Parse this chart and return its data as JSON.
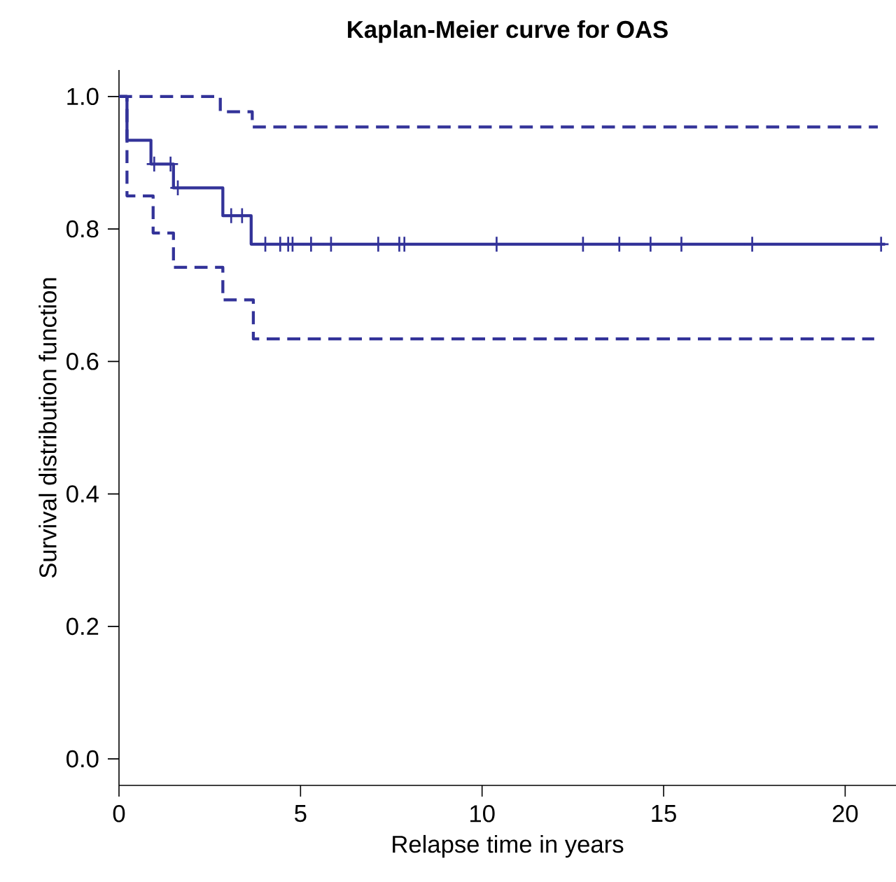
{
  "chart_data": {
    "type": "step",
    "title": "Kaplan-Meier curve for OAS",
    "xlabel": "Relapse time in years",
    "ylabel": "Survival distribution function",
    "xlim": [
      0,
      21.4
    ],
    "ylim": [
      -0.04,
      1.04
    ],
    "xticks": [
      0,
      5,
      10,
      15,
      20
    ],
    "yticks": [
      {
        "value": 0,
        "label": "0.0"
      },
      {
        "value": 0.2,
        "label": "0.2"
      },
      {
        "value": 0.4,
        "label": "0.4"
      },
      {
        "value": 0.6,
        "label": "0.6"
      },
      {
        "value": 0.8,
        "label": "0.8"
      },
      {
        "value": 1,
        "label": "1.0"
      }
    ],
    "series": [
      {
        "color": "#333399",
        "line_style": "solid",
        "x": [
          0,
          0.22,
          0.88,
          1.5,
          2.86,
          3.64,
          21.1
        ],
        "values": [
          1,
          0.934,
          0.898,
          0.862,
          0.82,
          0.777,
          0.777
        ]
      },
      {
        "color": "#333399",
        "line_style": "dashed",
        "x": [
          0,
          2.79,
          3.67,
          20.9
        ],
        "values": [
          1,
          0.977,
          0.954,
          0.954
        ]
      },
      {
        "color": "#333399",
        "line_style": "dashed",
        "x": [
          0,
          0.22,
          0.94,
          1.5,
          2.86,
          3.7,
          20.8
        ],
        "values": [
          1,
          0.85,
          0.794,
          0.742,
          0.693,
          0.634,
          0.634
        ]
      },
      {
        "type": "scatter",
        "color": "#333399",
        "marker": "cross",
        "x": [
          0.97,
          1.42,
          1.62,
          3.09,
          3.39,
          4.03,
          4.44,
          4.66,
          4.78,
          5.29,
          5.84,
          7.14,
          7.72,
          7.86,
          10.4,
          12.78,
          13.78,
          14.64,
          15.49,
          17.44,
          20.99
        ],
        "values": [
          0.898,
          0.898,
          0.862,
          0.82,
          0.82,
          0.777,
          0.777,
          0.777,
          0.777,
          0.777,
          0.777,
          0.777,
          0.777,
          0.777,
          0.777,
          0.777,
          0.777,
          0.777,
          0.777,
          0.777,
          0.777
        ]
      }
    ]
  }
}
